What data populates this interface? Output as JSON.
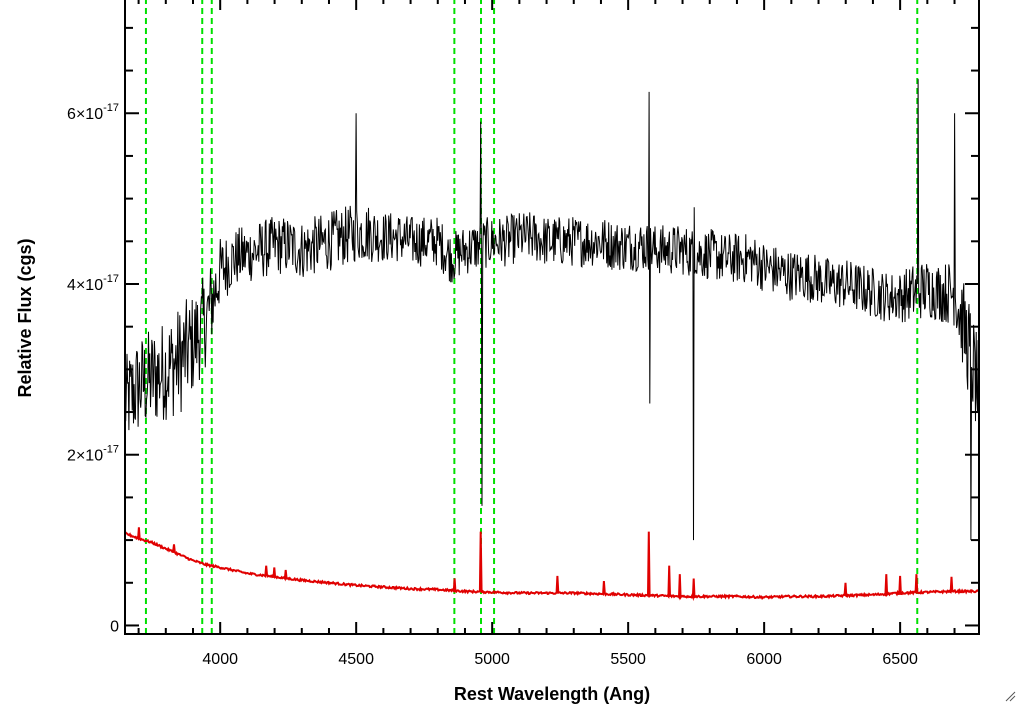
{
  "chart_data": {
    "type": "line",
    "xlabel": "Rest Wavelength (Ang)",
    "ylabel": "Relative Flux (cgs)",
    "xlim": [
      3650,
      6790
    ],
    "ylim": [
      -1e-18,
      7.35e-17
    ],
    "x_ticks": [
      4000,
      4500,
      5000,
      5500,
      6000,
      6500
    ],
    "x_tick_labels": [
      "4000",
      "4500",
      "5000",
      "5500",
      "6000",
      "6500"
    ],
    "y_ticks": [
      0,
      2e-17,
      4e-17,
      6e-17
    ],
    "y_tick_labels": [
      {
        "mantissa": "0",
        "exponent": ""
      },
      {
        "mantissa": "2×10",
        "exponent": "-17"
      },
      {
        "mantissa": "4×10",
        "exponent": "-17"
      },
      {
        "mantissa": "6×10",
        "exponent": "-17"
      }
    ],
    "grid": false,
    "legend": "none",
    "reference_lines_x": [
      3727,
      3934,
      3969,
      4861,
      4959,
      5007,
      6563
    ],
    "series": [
      {
        "color": "#000000",
        "x": [
          3650,
          3700,
          3750,
          3800,
          3850,
          3900,
          3950,
          3980,
          4000,
          4050,
          4100,
          4150,
          4200,
          4250,
          4300,
          4350,
          4400,
          4450,
          4500,
          4550,
          4600,
          4650,
          4700,
          4750,
          4800,
          4850,
          4900,
          4950,
          5000,
          5050,
          5100,
          5150,
          5200,
          5250,
          5300,
          5350,
          5400,
          5450,
          5500,
          5550,
          5600,
          5650,
          5700,
          5750,
          5800,
          5850,
          5900,
          5950,
          6000,
          6050,
          6100,
          6150,
          6200,
          6250,
          6300,
          6350,
          6400,
          6450,
          6500,
          6550,
          6600,
          6650,
          6700,
          6750,
          6790
        ],
        "y": [
          2.6e-17,
          2.8e-17,
          2.9e-17,
          3e-17,
          3.1e-17,
          3.3e-17,
          3.6e-17,
          3.9e-17,
          4.15e-17,
          4.3e-17,
          4.35e-17,
          4.4e-17,
          4.45e-17,
          4.45e-17,
          4.4e-17,
          4.45e-17,
          4.5e-17,
          4.55e-17,
          4.6e-17,
          4.6e-17,
          4.55e-17,
          4.55e-17,
          4.5e-17,
          4.5e-17,
          4.5e-17,
          4.3e-17,
          4.4e-17,
          4.45e-17,
          4.5e-17,
          4.5e-17,
          4.55e-17,
          4.55e-17,
          4.5e-17,
          4.5e-17,
          4.5e-17,
          4.5e-17,
          4.5e-17,
          4.45e-17,
          4.45e-17,
          4.45e-17,
          4.4e-17,
          4.4e-17,
          4.4e-17,
          4.35e-17,
          4.35e-17,
          4.3e-17,
          4.3e-17,
          4.3e-17,
          4.2e-17,
          4.15e-17,
          4.1e-17,
          4.1e-17,
          4.05e-17,
          4e-17,
          4e-17,
          3.95e-17,
          3.9e-17,
          3.85e-17,
          3.85e-17,
          3.9e-17,
          3.95e-17,
          3.9e-17,
          3.9e-17,
          3.3e-17,
          2.7e-17
        ],
        "noise": [
          5.5e-18,
          6e-18,
          6e-18,
          6e-18,
          6.5e-18,
          6e-18,
          5.5e-18,
          5e-18,
          4e-18,
          3.5e-18,
          3.5e-18,
          3.5e-18,
          3.5e-18,
          3.5e-18,
          3.5e-18,
          3.5e-18,
          3.5e-18,
          3.5e-18,
          3.5e-18,
          3.5e-18,
          3e-18,
          3e-18,
          3e-18,
          3e-18,
          3e-18,
          3e-18,
          3e-18,
          3e-18,
          3e-18,
          3e-18,
          3e-18,
          3e-18,
          3e-18,
          3e-18,
          3e-18,
          3e-18,
          3e-18,
          3e-18,
          3e-18,
          3e-18,
          3e-18,
          3e-18,
          3e-18,
          3e-18,
          3e-18,
          3e-18,
          3e-18,
          3e-18,
          3e-18,
          3e-18,
          3e-18,
          3e-18,
          3e-18,
          3e-18,
          3e-18,
          3e-18,
          3e-18,
          3e-18,
          3e-18,
          3.5e-18,
          3.5e-18,
          3.5e-18,
          4e-18,
          6e-18,
          6e-18
        ],
        "spikes": [
          {
            "x": 4959,
            "y": 5.9e-17
          },
          {
            "x": 4962,
            "y": 1.4e-17
          },
          {
            "x": 5577,
            "y": 6.25e-17
          },
          {
            "x": 5580,
            "y": 2.6e-17
          },
          {
            "x": 5740,
            "y": 1e-17
          },
          {
            "x": 5742,
            "y": 4.9e-17
          },
          {
            "x": 6565,
            "y": 6.4e-17
          },
          {
            "x": 6700,
            "y": 6e-17
          },
          {
            "x": 6760,
            "y": 1e-17
          },
          {
            "x": 4500,
            "y": 6e-17
          }
        ]
      },
      {
        "color": "#e00000",
        "x": [
          3650,
          3700,
          3750,
          3800,
          3850,
          3900,
          3950,
          4000,
          4100,
          4200,
          4300,
          4400,
          4500,
          4600,
          4700,
          4800,
          4900,
          5000,
          5100,
          5200,
          5300,
          5400,
          5500,
          5600,
          5700,
          5800,
          5900,
          6000,
          6100,
          6200,
          6300,
          6400,
          6500,
          6600,
          6700,
          6790
        ],
        "y": [
          1.08e-17,
          1.02e-17,
          9.7e-18,
          9e-18,
          8.3e-18,
          7.6e-18,
          7.1e-18,
          6.8e-18,
          6.1e-18,
          5.7e-18,
          5.3e-18,
          5e-18,
          4.7e-18,
          4.5e-18,
          4.3e-18,
          4.2e-18,
          4e-18,
          3.9e-18,
          3.8e-18,
          3.8e-18,
          3.8e-18,
          3.7e-18,
          3.6e-18,
          3.5e-18,
          3.4e-18,
          3.4e-18,
          3.4e-18,
          3.3e-18,
          3.4e-18,
          3.4e-18,
          3.5e-18,
          3.6e-18,
          3.8e-18,
          3.9e-18,
          4e-18,
          4e-18
        ],
        "spikes": [
          {
            "x": 3700,
            "y": 1.15e-17
          },
          {
            "x": 3830,
            "y": 9.5e-18
          },
          {
            "x": 4170,
            "y": 7e-18
          },
          {
            "x": 4200,
            "y": 6.8e-18
          },
          {
            "x": 4240,
            "y": 6.5e-18
          },
          {
            "x": 4861,
            "y": 5.5e-18
          },
          {
            "x": 4959,
            "y": 1.1e-17
          },
          {
            "x": 5240,
            "y": 5.8e-18
          },
          {
            "x": 5410,
            "y": 5.2e-18
          },
          {
            "x": 5577,
            "y": 1.1e-17
          },
          {
            "x": 5650,
            "y": 7e-18
          },
          {
            "x": 5690,
            "y": 6e-18
          },
          {
            "x": 5740,
            "y": 5.5e-18
          },
          {
            "x": 6300,
            "y": 5e-18
          },
          {
            "x": 6450,
            "y": 6e-18
          },
          {
            "x": 6500,
            "y": 5.8e-18
          },
          {
            "x": 6560,
            "y": 6e-18
          },
          {
            "x": 6690,
            "y": 5.7e-18
          }
        ]
      }
    ],
    "colors": {
      "reference_lines": "#00e000",
      "spectrum": "#000000",
      "error": "#e00000"
    }
  }
}
